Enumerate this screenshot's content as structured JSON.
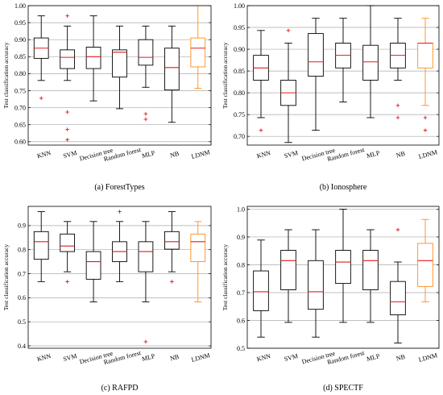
{
  "chart_data": [
    {
      "type": "box",
      "caption": "(a) ForestTypes",
      "ylabel": "Test classification  accuracy",
      "ylim": [
        0.59,
        1.0
      ],
      "yticks": [
        0.6,
        0.65,
        0.7,
        0.75,
        0.8,
        0.85,
        0.9,
        0.95,
        1.0
      ],
      "ytick_labels": [
        "0.60",
        "0.65",
        "0.70",
        "0.75",
        "0.80",
        "0.85",
        "0.90",
        "0.95",
        "1.00"
      ],
      "categories": [
        "KNN",
        "SVM",
        "Decision tree",
        "Random forest",
        "MLP",
        "NB",
        "LDNM"
      ],
      "boxes": [
        {
          "whislo": 0.78,
          "q1": 0.845,
          "med": 0.875,
          "q3": 0.905,
          "whishi": 0.97,
          "fliers": [
            0.728
          ]
        },
        {
          "whislo": 0.78,
          "q1": 0.815,
          "med": 0.848,
          "q3": 0.87,
          "whishi": 0.94,
          "fliers": [
            0.97,
            0.687,
            0.636,
            0.606
          ]
        },
        {
          "whislo": 0.72,
          "q1": 0.815,
          "med": 0.85,
          "q3": 0.878,
          "whishi": 0.97,
          "fliers": []
        },
        {
          "whislo": 0.697,
          "q1": 0.79,
          "med": 0.863,
          "q3": 0.87,
          "whishi": 0.94,
          "fliers": []
        },
        {
          "whislo": 0.76,
          "q1": 0.825,
          "med": 0.848,
          "q3": 0.9,
          "whishi": 0.94,
          "fliers": [
            0.682,
            0.666
          ]
        },
        {
          "whislo": 0.657,
          "q1": 0.752,
          "med": 0.818,
          "q3": 0.875,
          "whishi": 0.94,
          "fliers": []
        },
        {
          "whislo": 0.757,
          "q1": 0.82,
          "med": 0.875,
          "q3": 0.905,
          "whishi": 1.0,
          "fliers": []
        }
      ]
    },
    {
      "type": "box",
      "caption": "(b) Ionosphere",
      "ylabel": "Test classification  accuracy",
      "ylim": [
        0.68,
        1.0
      ],
      "yticks": [
        0.7,
        0.75,
        0.8,
        0.85,
        0.9,
        0.95,
        1.0
      ],
      "ytick_labels": [
        "0.70",
        "0.75",
        "0.80",
        "0.85",
        "0.90",
        "0.95",
        "1.00"
      ],
      "categories": [
        "KNN",
        "SVM",
        "Decision tree",
        "Random forest",
        "MLP",
        "NB",
        "LDNM"
      ],
      "boxes": [
        {
          "whislo": 0.743,
          "q1": 0.829,
          "med": 0.857,
          "q3": 0.886,
          "whishi": 0.943,
          "fliers": [
            0.714
          ]
        },
        {
          "whislo": 0.686,
          "q1": 0.771,
          "med": 0.8,
          "q3": 0.829,
          "whishi": 0.914,
          "fliers": [
            0.943
          ]
        },
        {
          "whislo": 0.714,
          "q1": 0.838,
          "med": 0.871,
          "q3": 0.936,
          "whishi": 0.971,
          "fliers": []
        },
        {
          "whislo": 0.779,
          "q1": 0.857,
          "med": 0.886,
          "q3": 0.914,
          "whishi": 0.971,
          "fliers": []
        },
        {
          "whislo": 0.743,
          "q1": 0.829,
          "med": 0.871,
          "q3": 0.909,
          "whishi": 1.0,
          "fliers": []
        },
        {
          "whislo": 0.829,
          "q1": 0.857,
          "med": 0.886,
          "q3": 0.914,
          "whishi": 0.971,
          "fliers": [
            0.771,
            0.743
          ]
        },
        {
          "whislo": 0.771,
          "q1": 0.857,
          "med": 0.914,
          "q3": 0.914,
          "whishi": 0.971,
          "fliers": [
            0.743,
            0.714
          ]
        }
      ]
    },
    {
      "type": "box",
      "caption": "(c) RAFPD",
      "ylabel": "Test classification  accuracy",
      "ylim": [
        0.39,
        0.98
      ],
      "yticks": [
        0.4,
        0.5,
        0.6,
        0.7,
        0.8,
        0.9
      ],
      "ytick_labels": [
        "0.4",
        "0.5",
        "0.6",
        "0.7",
        "0.8",
        "0.9"
      ],
      "categories": [
        "KNN",
        "SVM",
        "Decision tree",
        "Random forest",
        "MLP",
        "NB",
        "LDNM"
      ],
      "boxes": [
        {
          "whislo": 0.667,
          "q1": 0.76,
          "med": 0.833,
          "q3": 0.875,
          "whishi": 0.958,
          "fliers": []
        },
        {
          "whislo": 0.708,
          "q1": 0.792,
          "med": 0.815,
          "q3": 0.865,
          "whishi": 0.917,
          "fliers": [
            0.667
          ]
        },
        {
          "whislo": 0.583,
          "q1": 0.677,
          "med": 0.75,
          "q3": 0.792,
          "whishi": 0.917,
          "fliers": []
        },
        {
          "whislo": 0.667,
          "q1": 0.75,
          "med": 0.792,
          "q3": 0.833,
          "whishi": 0.917,
          "fliers": [
            0.958
          ]
        },
        {
          "whislo": 0.583,
          "q1": 0.708,
          "med": 0.792,
          "q3": 0.833,
          "whishi": 0.917,
          "fliers": [
            0.417
          ]
        },
        {
          "whislo": 0.708,
          "q1": 0.802,
          "med": 0.833,
          "q3": 0.875,
          "whishi": 0.958,
          "fliers": [
            0.667
          ]
        },
        {
          "whislo": 0.583,
          "q1": 0.75,
          "med": 0.833,
          "q3": 0.865,
          "whishi": 0.917,
          "fliers": []
        }
      ]
    },
    {
      "type": "box",
      "caption": "(d) SPECTF",
      "ylabel": "Test classification  accuracy",
      "ylim": [
        0.5,
        1.01
      ],
      "yticks": [
        0.5,
        0.6,
        0.7,
        0.8,
        0.9,
        1.0
      ],
      "ytick_labels": [
        "0.5",
        "0.6",
        "0.7",
        "0.8",
        "0.9",
        "1.0"
      ],
      "categories": [
        "KNN",
        "SVM",
        "Decision tree",
        "Random forest",
        "MLP",
        "NB",
        "LDNM"
      ],
      "boxes": [
        {
          "whislo": 0.54,
          "q1": 0.635,
          "med": 0.703,
          "q3": 0.778,
          "whishi": 0.889,
          "fliers": []
        },
        {
          "whislo": 0.593,
          "q1": 0.71,
          "med": 0.815,
          "q3": 0.852,
          "whishi": 0.926,
          "fliers": []
        },
        {
          "whislo": 0.54,
          "q1": 0.64,
          "med": 0.703,
          "q3": 0.815,
          "whishi": 0.926,
          "fliers": []
        },
        {
          "whislo": 0.593,
          "q1": 0.733,
          "med": 0.81,
          "q3": 0.852,
          "whishi": 1.0,
          "fliers": []
        },
        {
          "whislo": 0.593,
          "q1": 0.71,
          "med": 0.815,
          "q3": 0.852,
          "whishi": 0.926,
          "fliers": []
        },
        {
          "whislo": 0.519,
          "q1": 0.62,
          "med": 0.667,
          "q3": 0.74,
          "whishi": 0.81,
          "fliers": [
            0.926
          ]
        },
        {
          "whislo": 0.667,
          "q1": 0.722,
          "med": 0.815,
          "q3": 0.877,
          "whishi": 0.963,
          "fliers": []
        }
      ]
    }
  ],
  "colors": {
    "box": "#000000",
    "highlight_box": "#ff8c1a",
    "median": "#e41a1c",
    "flier": "#e41a1c",
    "grid": "#aaaaaa"
  },
  "highlight_category": "LDNM",
  "grid": "horizontal"
}
